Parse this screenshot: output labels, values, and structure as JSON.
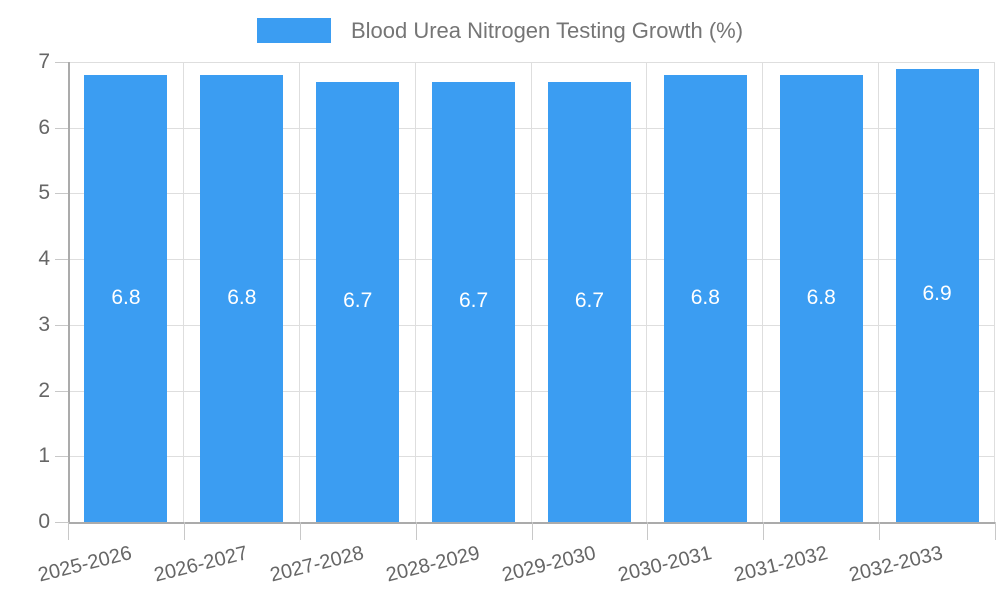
{
  "legend": {
    "label": "Blood Urea Nitrogen Testing Growth (%)"
  },
  "chart_data": {
    "type": "bar",
    "title": "Blood Urea Nitrogen Testing Growth (%)",
    "categories": [
      "2025-2026",
      "2026-2027",
      "2027-2028",
      "2028-2029",
      "2029-2030",
      "2030-2031",
      "2031-2032",
      "2032-2033"
    ],
    "values": [
      6.8,
      6.8,
      6.7,
      6.7,
      6.7,
      6.8,
      6.8,
      6.9
    ],
    "value_labels": [
      "6.8",
      "6.8",
      "6.7",
      "6.7",
      "6.7",
      "6.8",
      "6.8",
      "6.9"
    ],
    "xlabel": "",
    "ylabel": "",
    "ylim": [
      0,
      7
    ],
    "yticks": [
      0,
      1,
      2,
      3,
      4,
      5,
      6,
      7
    ],
    "grid": true,
    "legend_position": "top"
  },
  "colors": {
    "bar": "#3B9DF2",
    "axis_line": "#ababab",
    "grid_line": "#dedede",
    "tick": "#c8c8c8",
    "axis_label": "#666666",
    "legend_text": "#757575",
    "value_label": "#ffffff",
    "background": "#ffffff"
  }
}
